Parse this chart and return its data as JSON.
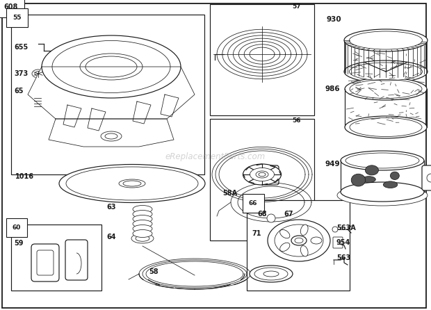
{
  "bg_color": "#ffffff",
  "line_color": "#1a1a1a",
  "watermark": "eReplacementParts.com",
  "lw_thin": 0.55,
  "lw_med": 0.85,
  "lw_thick": 1.3,
  "figsize": [
    6.2,
    4.46
  ],
  "dpi": 100
}
